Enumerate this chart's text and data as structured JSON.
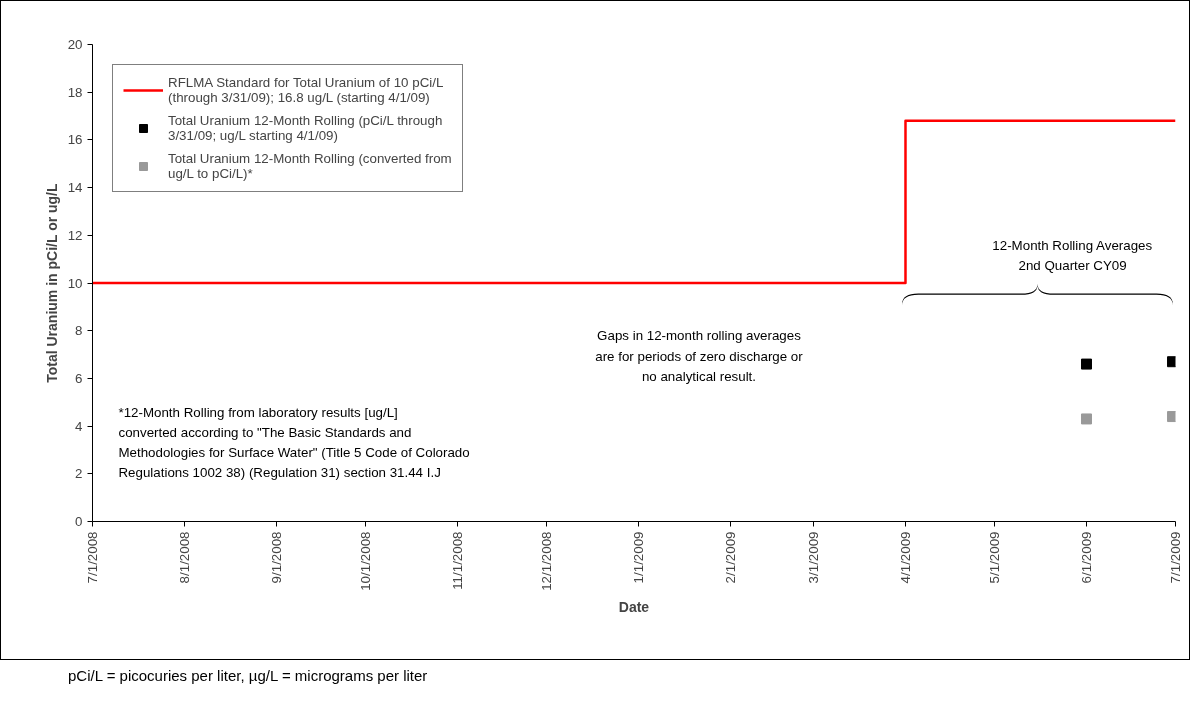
{
  "chart_data": {
    "type": "scatter",
    "xlabel": "Date",
    "ylabel": "Total Uranium in pCi/L or ug/L",
    "x": [
      "2009-06-01",
      "2009-06-30"
    ],
    "series": [
      {
        "name": "RFLMA Standard for Total Uranium of 10 pCi/L (through 3/31/09); 16.8 ug/L (starting 4/1/09)",
        "type": "step",
        "color": "#ff0000",
        "x": [
          "2008-07-01",
          "2009-04-01",
          "2009-07-01"
        ],
        "values": [
          10,
          16.8,
          16.8
        ],
        "marker": "none"
      },
      {
        "name": "Total Uranium 12-Month Rolling (pCi/L through 3/31/09; ug/L starting 4/1/09)",
        "color": "#000000",
        "values": [
          6.6,
          6.7
        ]
      },
      {
        "name": "Total Uranium 12-Month Rolling (converted from ug/L to pCi/L)*",
        "color": "#999999",
        "values": [
          4.3,
          4.4
        ]
      }
    ],
    "marker": "square",
    "legend": "top left",
    "grid": false,
    "xlim": [
      "2008-07-01",
      "2009-07-01"
    ],
    "xticks": [
      {
        "value": "2008-07-01",
        "label": "7/1/2008"
      },
      {
        "value": "2008-08-01",
        "label": "8/1/2008"
      },
      {
        "value": "2008-09-01",
        "label": "9/1/2008"
      },
      {
        "value": "2008-10-01",
        "label": "10/1/2008"
      },
      {
        "value": "2008-11-01",
        "label": "11/1/2008"
      },
      {
        "value": "2008-12-01",
        "label": "12/1/2008"
      },
      {
        "value": "2009-01-01",
        "label": "1/1/2009"
      },
      {
        "value": "2009-02-01",
        "label": "2/1/2009"
      },
      {
        "value": "2009-03-01",
        "label": "3/1/2009"
      },
      {
        "value": "2009-04-01",
        "label": "4/1/2009"
      },
      {
        "value": "2009-05-01",
        "label": "5/1/2009"
      },
      {
        "value": "2009-06-01",
        "label": "6/1/2009"
      },
      {
        "value": "2009-07-01",
        "label": "7/1/2009"
      }
    ],
    "ylim": [
      0,
      20
    ],
    "yticks": [
      0,
      2,
      4,
      6,
      8,
      10,
      12,
      14,
      16,
      18,
      20
    ],
    "annotations": [
      "12-Month Rolling Averages\n2nd Quarter CY09",
      "Gaps in 12-month rolling averages\nare for periods of zero discharge or\nno analytical result.",
      "*12-Month Rolling from laboratory results [ug/L]\nconverted according to \"The Basic Standards and\nMethodologies for Surface Water\" (Title 5 Code of Colorado\nRegulations 1002 38) (Regulation 31) section 31.44 I.J",
      "pCi/L = picocuries per liter, µg/L = micrograms per liter"
    ]
  }
}
